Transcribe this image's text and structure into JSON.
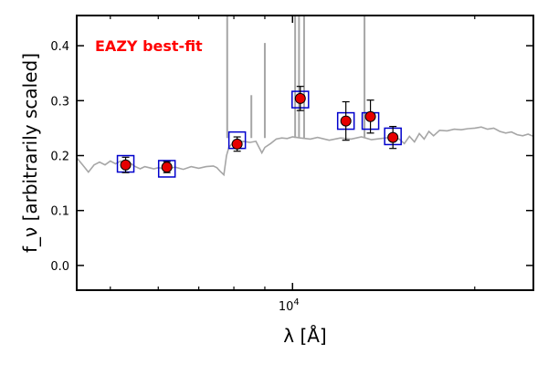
{
  "chart_data": {
    "type": "scatter",
    "title": "",
    "xlabel": "λ [Å]",
    "ylabel": "f_ν [arbitrarily scaled]",
    "x_scale": "log",
    "xlim": [
      4400,
      25000
    ],
    "ylim": [
      -0.045,
      0.455
    ],
    "grid": false,
    "annotation": "EAZY best-fit",
    "colors": {
      "annotation": "#ff0000",
      "model_line": "#a6a6a6",
      "points": "#e60000",
      "model_boxes": "#0000cc",
      "error_bars": "#000000"
    },
    "x_tick_labels": [
      {
        "value": 10000,
        "base": "10",
        "exp": "4"
      }
    ],
    "x_minor_ticks": [
      5000,
      6000,
      7000,
      8000,
      9000,
      20000
    ],
    "y_ticks": [
      {
        "value": 0.0,
        "label": "0.0"
      },
      {
        "value": 0.1,
        "label": "0.1"
      },
      {
        "value": 0.2,
        "label": "0.2"
      },
      {
        "value": 0.3,
        "label": "0.3"
      },
      {
        "value": 0.4,
        "label": "0.4"
      }
    ],
    "photometry": [
      {
        "x": 5300,
        "y": 0.183,
        "err": 0.014,
        "model": 0.185
      },
      {
        "x": 6200,
        "y": 0.179,
        "err": 0.01,
        "model": 0.176
      },
      {
        "x": 8100,
        "y": 0.221,
        "err": 0.013,
        "model": 0.228
      },
      {
        "x": 10300,
        "y": 0.304,
        "err": 0.022,
        "model": 0.302
      },
      {
        "x": 12250,
        "y": 0.263,
        "err": 0.035,
        "model": 0.263
      },
      {
        "x": 13450,
        "y": 0.271,
        "err": 0.03,
        "model": 0.263
      },
      {
        "x": 14650,
        "y": 0.233,
        "err": 0.02,
        "model": 0.235
      }
    ],
    "model_spectrum": [
      [
        4400,
        0.196
      ],
      [
        4500,
        0.183
      ],
      [
        4600,
        0.17
      ],
      [
        4700,
        0.183
      ],
      [
        4800,
        0.188
      ],
      [
        4900,
        0.183
      ],
      [
        5000,
        0.19
      ],
      [
        5100,
        0.185
      ],
      [
        5200,
        0.19
      ],
      [
        5300,
        0.182
      ],
      [
        5400,
        0.186
      ],
      [
        5500,
        0.18
      ],
      [
        5600,
        0.176
      ],
      [
        5700,
        0.18
      ],
      [
        5800,
        0.178
      ],
      [
        5900,
        0.176
      ],
      [
        6000,
        0.178
      ],
      [
        6200,
        0.176
      ],
      [
        6400,
        0.179
      ],
      [
        6600,
        0.175
      ],
      [
        6800,
        0.18
      ],
      [
        7000,
        0.177
      ],
      [
        7200,
        0.18
      ],
      [
        7400,
        0.181
      ],
      [
        7500,
        0.178
      ],
      [
        7600,
        0.171
      ],
      [
        7700,
        0.165
      ],
      [
        7780,
        0.2
      ],
      [
        7850,
        0.215
      ],
      [
        7950,
        0.222
      ],
      [
        8100,
        0.224
      ],
      [
        8300,
        0.226
      ],
      [
        8500,
        0.224
      ],
      [
        8700,
        0.226
      ],
      [
        8900,
        0.205
      ],
      [
        9000,
        0.215
      ],
      [
        9200,
        0.222
      ],
      [
        9400,
        0.23
      ],
      [
        9600,
        0.232
      ],
      [
        9800,
        0.231
      ],
      [
        10000,
        0.234
      ],
      [
        10300,
        0.232
      ],
      [
        10700,
        0.23
      ],
      [
        11000,
        0.233
      ],
      [
        11500,
        0.228
      ],
      [
        12000,
        0.232
      ],
      [
        12500,
        0.23
      ],
      [
        13000,
        0.234
      ],
      [
        13500,
        0.229
      ],
      [
        14000,
        0.231
      ],
      [
        14500,
        0.233
      ],
      [
        15000,
        0.23
      ],
      [
        15300,
        0.222
      ],
      [
        15600,
        0.235
      ],
      [
        15900,
        0.225
      ],
      [
        16200,
        0.24
      ],
      [
        16500,
        0.23
      ],
      [
        16800,
        0.244
      ],
      [
        17100,
        0.236
      ],
      [
        17500,
        0.246
      ],
      [
        18000,
        0.245
      ],
      [
        18500,
        0.248
      ],
      [
        19000,
        0.247
      ],
      [
        19500,
        0.249
      ],
      [
        20000,
        0.25
      ],
      [
        20500,
        0.252
      ],
      [
        21000,
        0.248
      ],
      [
        21500,
        0.25
      ],
      [
        22000,
        0.244
      ],
      [
        22500,
        0.241
      ],
      [
        23000,
        0.243
      ],
      [
        23500,
        0.238
      ],
      [
        24000,
        0.236
      ],
      [
        24500,
        0.239
      ],
      [
        25000,
        0.235
      ]
    ],
    "emission_lines": [
      {
        "x": 7800,
        "peak": 0.455
      },
      {
        "x": 8550,
        "peak": 0.31
      },
      {
        "x": 9000,
        "peak": 0.405
      },
      {
        "x": 10100,
        "peak": 0.455
      },
      {
        "x": 10250,
        "peak": 0.455
      },
      {
        "x": 10450,
        "peak": 0.455
      },
      {
        "x": 13150,
        "peak": 0.455
      }
    ]
  }
}
